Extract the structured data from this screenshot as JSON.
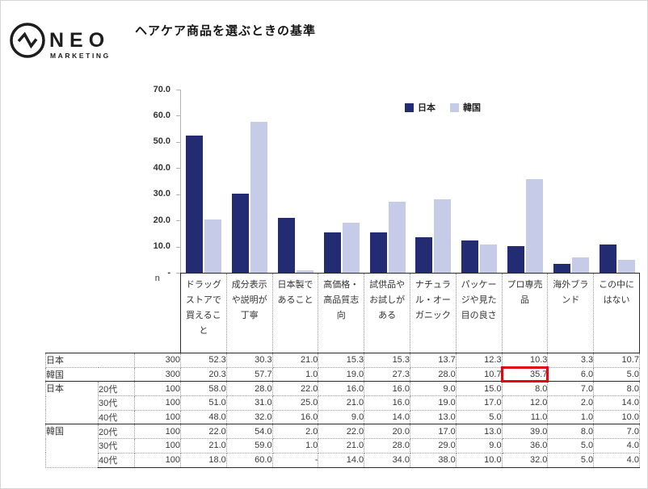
{
  "brand": {
    "name": "NEO",
    "sub": "MARKETING"
  },
  "page": {
    "title": "ヘアケア商品を選ぶときの基準"
  },
  "chart_data": {
    "type": "bar",
    "title": "ヘアケア商品を選ぶときの基準",
    "xlabel": "",
    "ylabel": "",
    "ylim": [
      0,
      70
    ],
    "ytick_labels": [
      "70.0",
      "60.0",
      "50.0",
      "40.0",
      "30.0",
      "20.0",
      "10.0",
      "-"
    ],
    "grid": false,
    "legend_position": "top-right",
    "categories": [
      "ドラッグストアで買えること",
      "成分表示や説明が丁寧",
      "日本製であること",
      "高価格・高品質志向",
      "試供品やお試しがある",
      "ナチュラル・オーガニック",
      "パッケージや見た目の良さ",
      "プロ専売品",
      "海外ブランド",
      "この中にはない"
    ],
    "series": [
      {
        "name": "日本",
        "color": "#232C72",
        "values": [
          52.3,
          30.3,
          21.0,
          15.3,
          15.3,
          13.7,
          12.3,
          10.3,
          3.3,
          10.7
        ]
      },
      {
        "name": "韓国",
        "color": "#C6CCE8",
        "values": [
          20.3,
          57.7,
          1.0,
          19.0,
          27.3,
          28.0,
          10.7,
          35.7,
          6.0,
          5.0
        ]
      }
    ]
  },
  "table": {
    "n_header": "n",
    "columns": [
      "ドラッグストアで買えること",
      "成分表示や説明が丁寧",
      "日本製であること",
      "高価格・高品質志向",
      "試供品やお試しがある",
      "ナチュラル・オーガニック",
      "パッケージや見た目の良さ",
      "プロ専売品",
      "海外ブランド",
      "この中にはない"
    ],
    "rows": [
      {
        "group": "日本",
        "age": "",
        "n": "300",
        "merged": true,
        "section_top": true,
        "values": [
          "52.3",
          "30.3",
          "21.0",
          "15.3",
          "15.3",
          "13.7",
          "12.3",
          "10.3",
          "3.3",
          "10.7"
        ]
      },
      {
        "group": "韓国",
        "age": "",
        "n": "300",
        "merged": true,
        "highlight_col": 7,
        "values": [
          "20.3",
          "57.7",
          "1.0",
          "19.0",
          "27.3",
          "28.0",
          "10.7",
          "35.7",
          "6.0",
          "5.0"
        ]
      },
      {
        "group": "日本",
        "age": "20代",
        "n": "100",
        "section_top": true,
        "values": [
          "58.0",
          "28.0",
          "22.0",
          "16.0",
          "16.0",
          "9.0",
          "15.0",
          "8.0",
          "7.0",
          "8.0"
        ]
      },
      {
        "group": "",
        "age": "30代",
        "n": "100",
        "values": [
          "51.0",
          "31.0",
          "25.0",
          "21.0",
          "16.0",
          "19.0",
          "17.0",
          "12.0",
          "2.0",
          "14.0"
        ]
      },
      {
        "group": "",
        "age": "40代",
        "n": "100",
        "values": [
          "48.0",
          "32.0",
          "16.0",
          "9.0",
          "14.0",
          "13.0",
          "5.0",
          "11.0",
          "1.0",
          "10.0"
        ]
      },
      {
        "group": "韓国",
        "age": "20代",
        "n": "100",
        "section_top": true,
        "values": [
          "22.0",
          "54.0",
          "2.0",
          "22.0",
          "20.0",
          "17.0",
          "13.0",
          "39.0",
          "8.0",
          "7.0"
        ]
      },
      {
        "group": "",
        "age": "30代",
        "n": "100",
        "values": [
          "21.0",
          "59.0",
          "1.0",
          "21.0",
          "28.0",
          "29.0",
          "9.0",
          "36.0",
          "5.0",
          "4.0"
        ]
      },
      {
        "group": "",
        "age": "40代",
        "n": "100",
        "values": [
          "18.0",
          "60.0",
          "-",
          "14.0",
          "34.0",
          "38.0",
          "10.0",
          "32.0",
          "5.0",
          "4.0"
        ]
      }
    ]
  },
  "colors": {
    "japan": "#232C72",
    "korea": "#C6CCE8",
    "highlight": "#E30613",
    "axis": "#B3B3B3"
  }
}
